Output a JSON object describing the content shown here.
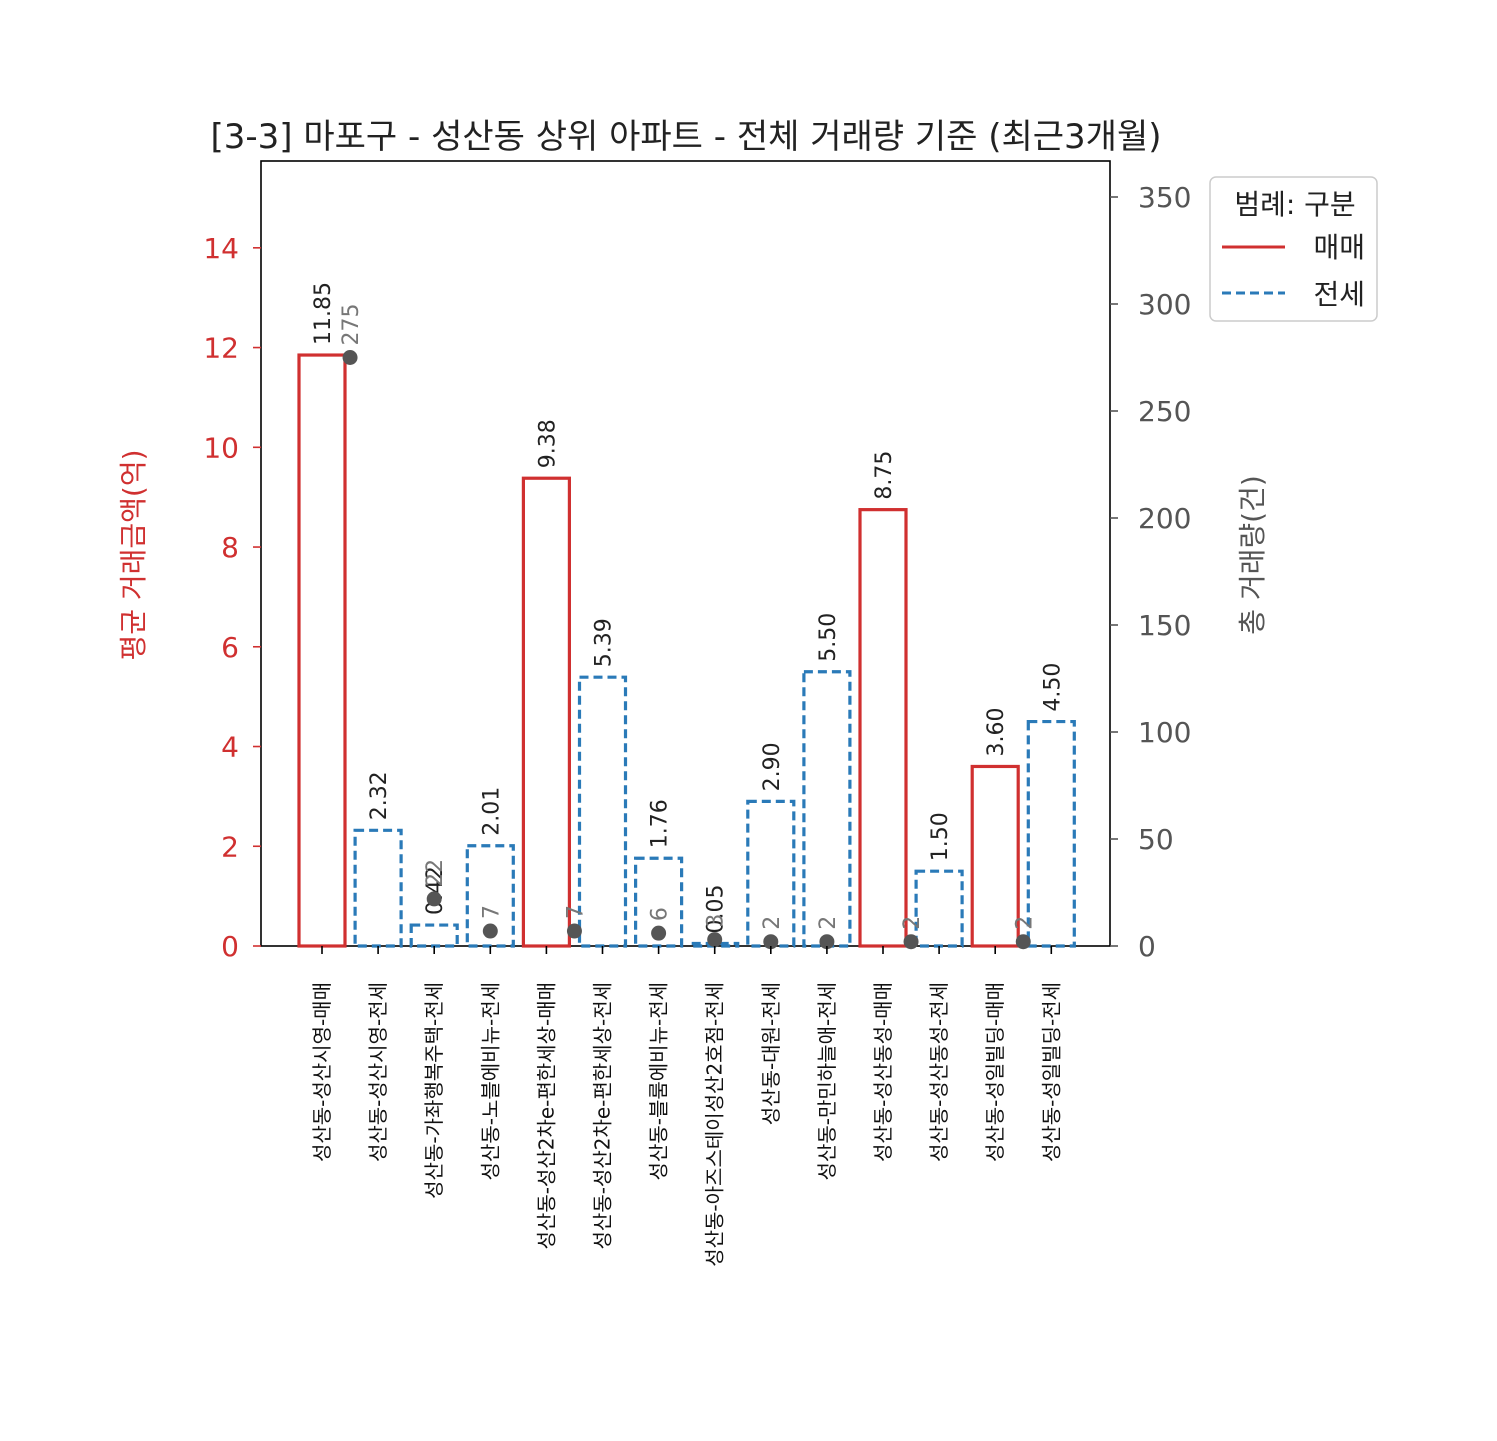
{
  "chart_data": {
    "type": "bar",
    "title": "[3-3] 마포구 - 성산동 상위 아파트 - 전체 거래량 기준 (최근3개월)",
    "ylabel": "평균 거래금액(억)",
    "y2label": "총 거래량(건)",
    "ylim": [
      0,
      15.7
    ],
    "y2lim": [
      0,
      366
    ],
    "yticks": [
      "0",
      "2",
      "4",
      "6",
      "8",
      "10",
      "12",
      "14"
    ],
    "y2ticks": [
      "0",
      "50",
      "100",
      "150",
      "200",
      "250",
      "300",
      "350"
    ],
    "categories": [
      "성산동-성산시영-매매",
      "성산동-성산시영-전세",
      "성산동-가좌행복주택-전세",
      "성산동-노블에비뉴-전세",
      "성산동-성산2차e-편한세상-매매",
      "성산동-성산2차e-편한세상-전세",
      "성산동-블룸에비뉴-전세",
      "성산동-아즈스테이성산2호점-전세",
      "성산동-대원-전세",
      "성산동-만민하늘애-전세",
      "성산동-성산동성-매매",
      "성산동-성산동성-전세",
      "성산동-성일빌딩-매매",
      "성산동-성일빌딩-전세"
    ],
    "kinds": [
      "매매",
      "전세",
      "전세",
      "전세",
      "매매",
      "전세",
      "전세",
      "전세",
      "전세",
      "전세",
      "매매",
      "전세",
      "매매",
      "전세"
    ],
    "price_values": [
      11.85,
      2.32,
      0.42,
      2.01,
      9.38,
      5.39,
      1.76,
      0.05,
      2.9,
      5.5,
      8.75,
      1.5,
      3.6,
      4.5
    ],
    "price_labels": [
      "11.85",
      "2.32",
      "0.42",
      "2.01",
      "9.38",
      "5.39",
      "1.76",
      "0.05",
      "2.90",
      "5.50",
      "8.75",
      "1.50",
      "3.60",
      "4.50"
    ],
    "volume_points": [
      {
        "label": "275",
        "value": 275,
        "x_index": 0.5
      },
      {
        "label": "22",
        "value": 22,
        "x_index": 2.0
      },
      {
        "label": "7",
        "value": 7,
        "x_index": 3.0
      },
      {
        "label": "7",
        "value": 7,
        "x_index": 4.5
      },
      {
        "label": "6",
        "value": 6,
        "x_index": 6.0
      },
      {
        "label": "3",
        "value": 3,
        "x_index": 7.0
      },
      {
        "label": "2",
        "value": 2,
        "x_index": 8.0
      },
      {
        "label": "2",
        "value": 2,
        "x_index": 9.0
      },
      {
        "label": "2",
        "value": 2,
        "x_index": 10.5
      },
      {
        "label": "2",
        "value": 2,
        "x_index": 12.5
      }
    ],
    "legend": {
      "title": "범례: 구분",
      "items": [
        {
          "label": "매매",
          "color": "#d03030",
          "style": "solid"
        },
        {
          "label": "전세",
          "color": "#2a7ab8",
          "style": "dashed"
        }
      ],
      "placement": "outside-top-right"
    },
    "colors": {
      "sale": "#d03030",
      "jeonse": "#2a7ab8",
      "left_axis": "#d03030",
      "right_axis": "#555555",
      "volume_marker": "#555555"
    }
  }
}
